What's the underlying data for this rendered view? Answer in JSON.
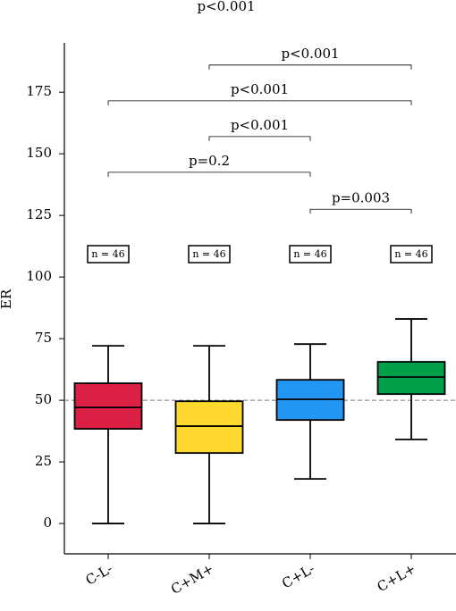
{
  "chart_data": {
    "type": "box",
    "title": "p<0.001",
    "y_label": "ER",
    "categories": [
      "C-L-",
      "C+M+",
      "C+L-",
      "C+L+"
    ],
    "boxes": [
      {
        "min": 0,
        "q1": 38.4,
        "median": 47.1,
        "q3": 56.9,
        "max": 72.1,
        "color": "#dc1f45",
        "n_label": "n = 46"
      },
      {
        "min": 0,
        "q1": 28.6,
        "median": 39.5,
        "q3": 49.6,
        "max": 72.1,
        "color": "#fed72f",
        "n_label": "n = 46"
      },
      {
        "min": 18.1,
        "q1": 42.0,
        "median": 50.4,
        "q3": 58.3,
        "max": 72.8,
        "color": "#2196f3",
        "n_label": "n = 46"
      },
      {
        "min": 34.1,
        "q1": 52.5,
        "median": 59.4,
        "q3": 65.6,
        "max": 83.0,
        "color": "#03a04a",
        "n_label": "n = 46"
      }
    ],
    "reference_line": 50,
    "comparisons": [
      {
        "text": "p<0.001",
        "pair": [
          1,
          3
        ],
        "y": 186
      },
      {
        "text": "p<0.001",
        "pair": [
          0,
          3
        ],
        "y": 171.5
      },
      {
        "text": "p<0.001",
        "pair": [
          1,
          2
        ],
        "y": 157
      },
      {
        "text": "p=0.2",
        "pair": [
          0,
          2
        ],
        "y": 142.5
      },
      {
        "text": "p=0.003",
        "pair": [
          2,
          3
        ],
        "y": 127.5
      }
    ],
    "ylim": [
      -12.3,
      195
    ],
    "yticks": [
      0,
      25,
      50,
      75,
      100,
      125,
      150,
      175
    ]
  }
}
